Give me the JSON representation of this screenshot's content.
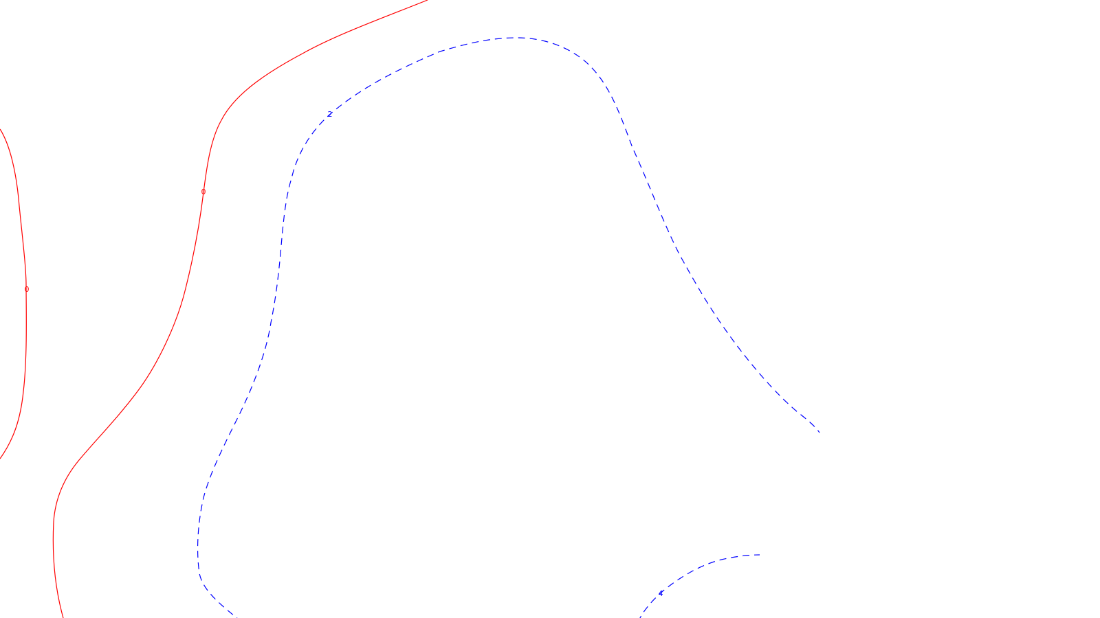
{
  "contours": [
    {
      "id": "contour-0-left",
      "level": "0",
      "color": "#ff0000",
      "style": "solid"
    },
    {
      "id": "contour-0-middle",
      "level": "0",
      "color": "#ff0000",
      "style": "solid"
    },
    {
      "id": "contour-2",
      "level": "2",
      "color": "#0000ff",
      "style": "dashed"
    },
    {
      "id": "contour-4",
      "level": "4",
      "color": "#0000ff",
      "style": "dashed"
    }
  ],
  "colors": {
    "background": "#ffffff",
    "zero_level": "#ff0000",
    "positive_levels": "#0000ff"
  }
}
